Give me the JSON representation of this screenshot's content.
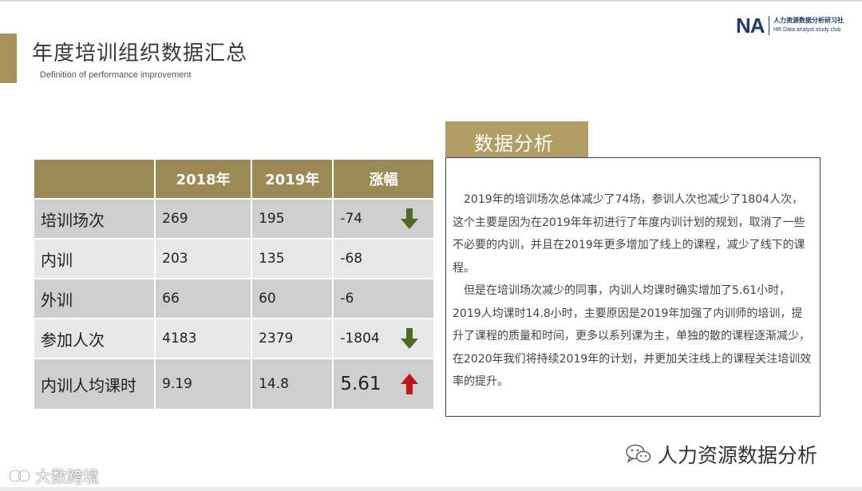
{
  "header": {
    "title": "年度培训组织数据汇总",
    "subtitle": "Definition of performance improvement"
  },
  "logo": {
    "mark": "NA",
    "name_cn": "人力资源数据分析研习社",
    "name_en": "HR Data analyst study club"
  },
  "table": {
    "headers": [
      "",
      "2018年",
      "2019年",
      "涨幅"
    ],
    "rows": [
      {
        "label": "培训场次",
        "v2018": "269",
        "v2019": "195",
        "change": "-74",
        "trend": "down-green"
      },
      {
        "label": "内训",
        "v2018": "203",
        "v2019": "135",
        "change": "-68",
        "trend": ""
      },
      {
        "label": "外训",
        "v2018": "66",
        "v2019": "60",
        "change": "-6",
        "trend": ""
      },
      {
        "label": "参加人次",
        "v2018": "4183",
        "v2019": "2379",
        "change": "-1804",
        "trend": "down-green"
      },
      {
        "label": "内训人均课时",
        "v2018": "9.19",
        "v2019": "14.8",
        "change": "5.61",
        "trend": "up-red"
      }
    ]
  },
  "analysis": {
    "tab_label": "数据分析",
    "paragraphs": [
      "2019年的培训场次总体减少了74场，参训人次也减少了1804人次，这个主要是因为在2019年年初进行了年度内训计划的规划，取消了一些不必要的内训，并且在2019年更多增加了线上的课程，减少了线下的课程。",
      "但是在培训场次减少的同事，内训人均课时确实增加了5.61小时，2019人均课时14.8小时，主要原因是2019年加强了内训师的培训，提升了课程的质量和时间，更多以系列课为主，单独的散的课程逐渐减少，在2020年我们将持续2019年的计划，并更加关注线上的课程关注培训效率的提升。"
    ]
  },
  "footer": {
    "wechat_name": "人力资源数据分析",
    "watermark": "大数跨境"
  },
  "colors": {
    "gold": "#9c8a55",
    "navy": "#1f3a6e",
    "down_arrow": "#4e6a25",
    "up_arrow": "#c0151b"
  }
}
